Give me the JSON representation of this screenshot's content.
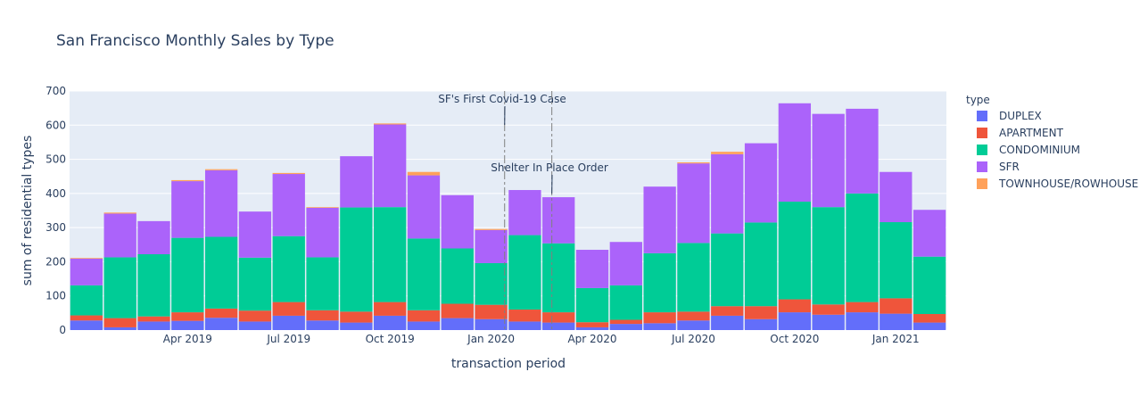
{
  "chart_data": {
    "type": "bar",
    "stacked": true,
    "title": "San Francisco Monthly Sales by Type",
    "xlabel": "transaction period",
    "ylabel": "sum of residential types",
    "ylim": [
      0,
      700
    ],
    "yticks": [
      0,
      100,
      200,
      300,
      400,
      500,
      600,
      700
    ],
    "grid": true,
    "legend": {
      "title": "type",
      "placement": "right"
    },
    "categories": [
      "Jan 2019",
      "Feb 2019",
      "Mar 2019",
      "Apr 2019",
      "May 2019",
      "Jun 2019",
      "Jul 2019",
      "Aug 2019",
      "Sep 2019",
      "Oct 2019",
      "Nov 2019",
      "Dec 2019",
      "Jan 2020",
      "Feb 2020",
      "Mar 2020",
      "Apr 2020",
      "May 2020",
      "Jun 2020",
      "Jul 2020",
      "Aug 2020",
      "Sep 2020",
      "Oct 2020",
      "Nov 2020",
      "Dec 2020",
      "Jan 2021",
      "Feb 2021"
    ],
    "xticks": [
      {
        "label": "Apr 2019",
        "index": 3
      },
      {
        "label": "Jul 2019",
        "index": 6
      },
      {
        "label": "Oct 2019",
        "index": 9
      },
      {
        "label": "Jan 2020",
        "index": 12
      },
      {
        "label": "Apr 2020",
        "index": 15
      },
      {
        "label": "Jul 2020",
        "index": 18
      },
      {
        "label": "Oct 2020",
        "index": 21
      },
      {
        "label": "Jan 2021",
        "index": 24
      }
    ],
    "series": [
      {
        "name": "DUPLEX",
        "color": "#636efa",
        "values": [
          28,
          8,
          25,
          27,
          36,
          25,
          42,
          28,
          22,
          42,
          25,
          35,
          32,
          25,
          22,
          8,
          18,
          20,
          28,
          42,
          32,
          52,
          45,
          52,
          48,
          22
        ]
      },
      {
        "name": "APARTMENT",
        "color": "#ef553b",
        "values": [
          15,
          27,
          15,
          25,
          27,
          32,
          40,
          30,
          32,
          40,
          33,
          42,
          42,
          35,
          30,
          15,
          12,
          32,
          26,
          28,
          38,
          38,
          30,
          30,
          45,
          25
        ]
      },
      {
        "name": "CONDOMINIUM",
        "color": "#00cc96",
        "values": [
          88,
          178,
          182,
          218,
          210,
          155,
          193,
          155,
          305,
          278,
          210,
          162,
          122,
          218,
          202,
          100,
          101,
          173,
          201,
          213,
          245,
          286,
          285,
          318,
          223,
          168
        ]
      },
      {
        "name": "SFR",
        "color": "#ab63fa",
        "values": [
          78,
          128,
          97,
          166,
          195,
          135,
          182,
          145,
          150,
          242,
          185,
          156,
          97,
          132,
          135,
          112,
          127,
          195,
          233,
          232,
          232,
          288,
          273,
          248,
          147,
          137
        ]
      },
      {
        "name": "TOWNHOUSE/ROWHOUSE",
        "color": "#ffa15a",
        "values": [
          2,
          3,
          0,
          3,
          3,
          0,
          3,
          2,
          0,
          3,
          10,
          0,
          3,
          0,
          0,
          0,
          0,
          0,
          3,
          7,
          0,
          0,
          0,
          0,
          0,
          0
        ]
      }
    ],
    "annotations": [
      {
        "text": "SF's First Covid-19 Case",
        "x_index": 12.9,
        "line": "dashdot"
      },
      {
        "text": "Shelter In Place Order",
        "x_index": 14.3,
        "line": "dashdot"
      }
    ]
  }
}
